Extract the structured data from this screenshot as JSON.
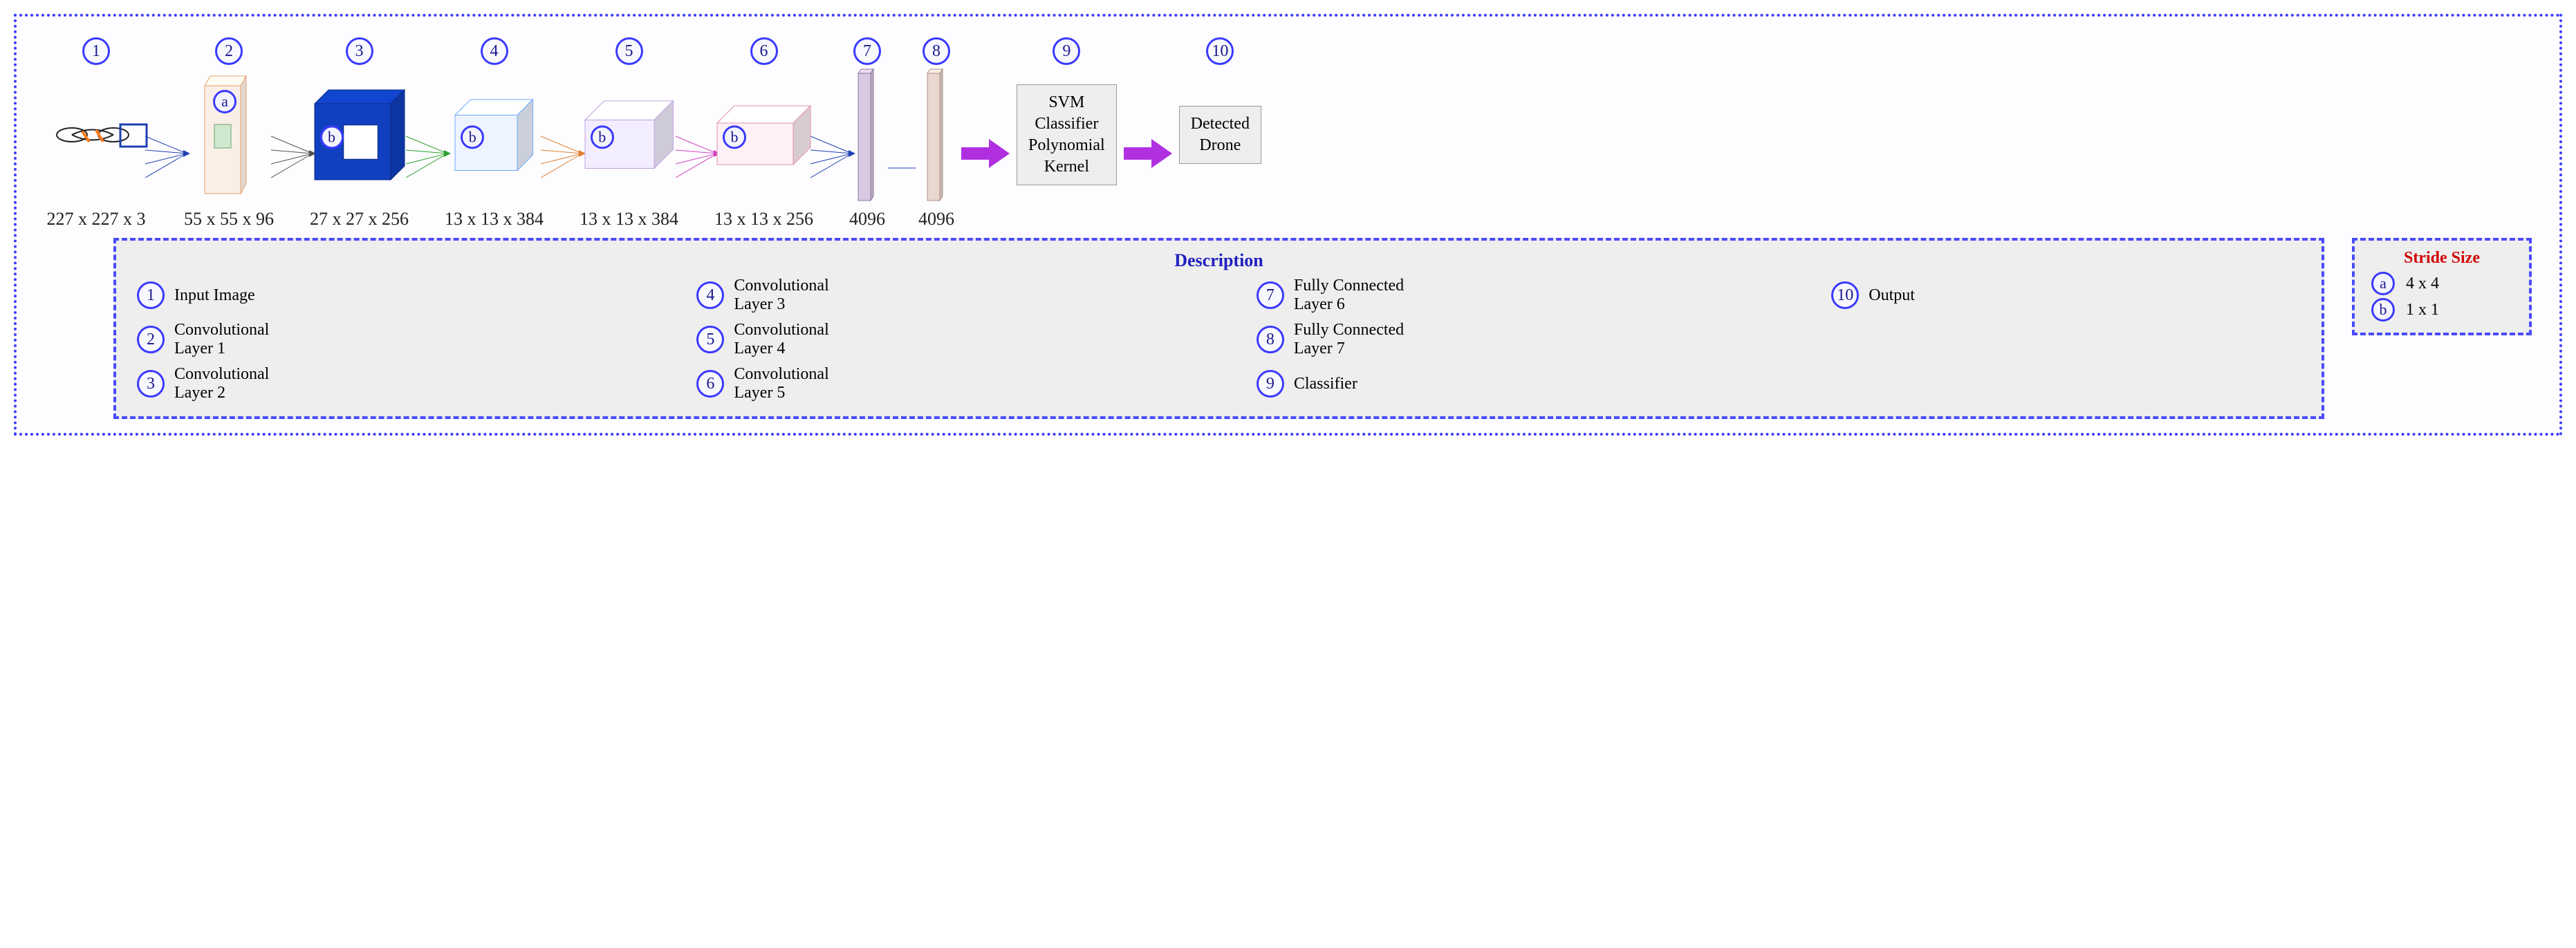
{
  "border_color": "#3a3aff",
  "stages": [
    {
      "n": "1",
      "dim": "227 x 227 x 3",
      "kind": "input"
    },
    {
      "n": "2",
      "dim": "55 x 55 x 96",
      "kind": "slab",
      "stride": "a",
      "fill": "#f9efe6",
      "edge": "#e6a070"
    },
    {
      "n": "3",
      "dim": "27 x 27 x 256",
      "kind": "cube",
      "stride": "b",
      "fill": "#1040c0",
      "edge": "#0a2a80",
      "w": 110,
      "h": 110,
      "d": 40
    },
    {
      "n": "4",
      "dim": "13 x 13 x 384",
      "kind": "cube",
      "stride": "b",
      "fill": "#eef4ff",
      "edge": "#6fa8ff",
      "w": 90,
      "h": 80,
      "d": 45
    },
    {
      "n": "5",
      "dim": "13 x 13 x 384",
      "kind": "cube",
      "stride": "b",
      "fill": "#f3eeff",
      "edge": "#c0a0e0",
      "w": 100,
      "h": 70,
      "d": 55
    },
    {
      "n": "6",
      "dim": "13 x 13 x 256",
      "kind": "cube",
      "stride": "b",
      "fill": "#fff0f6",
      "edge": "#e090b0",
      "w": 110,
      "h": 60,
      "d": 50
    },
    {
      "n": "7",
      "dim": "4096",
      "kind": "bar",
      "fill": "#d8c8e0",
      "edge": "#8a7aa0"
    },
    {
      "n": "8",
      "dim": "4096",
      "kind": "bar",
      "fill": "#e8d8d0",
      "edge": "#b0908a"
    },
    {
      "n": "9",
      "dim": "",
      "kind": "svm",
      "label": "SVM\nClassifier\nPolynomial\nKernel"
    },
    {
      "n": "10",
      "dim": "",
      "kind": "out",
      "label": "Detected\nDrone"
    }
  ],
  "desc_title": "Description",
  "desc": [
    {
      "n": "1",
      "t": "Input Image"
    },
    {
      "n": "2",
      "t": "Convolutional Layer 1"
    },
    {
      "n": "3",
      "t": "Convolutional Layer 2"
    },
    {
      "n": "4",
      "t": "Convolutional Layer 3"
    },
    {
      "n": "5",
      "t": "Convolutional Layer 4"
    },
    {
      "n": "6",
      "t": "Convolutional Layer 5"
    },
    {
      "n": "7",
      "t": "Fully Connected Layer 6"
    },
    {
      "n": "8",
      "t": "Fully Connected Layer 7"
    },
    {
      "n": "9",
      "t": "Classifier"
    },
    {
      "n": "10",
      "t": "Output"
    }
  ],
  "stride_title": "Stride Size",
  "strides": [
    {
      "k": "a",
      "v": "4 x 4"
    },
    {
      "k": "b",
      "v": "1 x 1"
    }
  ],
  "arrow_color": "#b030e0"
}
